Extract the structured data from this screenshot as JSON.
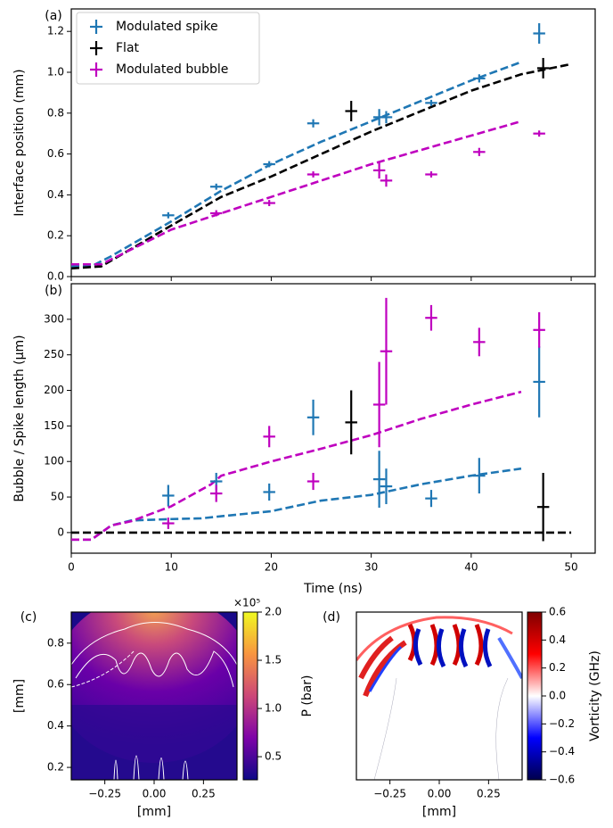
{
  "chart_data": [
    {
      "type": "errorbar",
      "label": "(a)",
      "ylabel": "Interface position (mm)",
      "xlim": [
        0,
        52.4
      ],
      "xticks": [
        0,
        10,
        20,
        30,
        40,
        50
      ],
      "ylim": [
        0,
        1.31
      ],
      "yticks": [
        {
          "value": 0,
          "label": "0.0"
        },
        0.2,
        0.4,
        0.6,
        0.8,
        {
          "value": 1,
          "label": "1.0"
        },
        1.2
      ],
      "legend": "upper left",
      "series": [
        {
          "name": "Modulated spike",
          "color": "#1f77b4",
          "x": [
            9.7,
            14.5,
            19.8,
            24.2,
            30.8,
            31.5,
            36,
            40.8,
            46.8
          ],
          "values": [
            0.3,
            0.44,
            0.55,
            0.75,
            0.78,
            0.78,
            0.85,
            0.97,
            1.19
          ],
          "yerr": [
            0.015,
            0.015,
            0.015,
            0.02,
            0.04,
            0.03,
            0.015,
            0.02,
            0.05
          ],
          "xerr": [
            0.6,
            0.6,
            0.6,
            0.6,
            0.6,
            0.6,
            0.6,
            0.6,
            0.6
          ]
        },
        {
          "name": "Flat",
          "color": "#000000",
          "x": [
            28,
            47.2
          ],
          "values": [
            0.81,
            1.02
          ],
          "yerr": [
            0.05,
            0.05
          ],
          "xerr": [
            0.6,
            0.6
          ]
        },
        {
          "name": "Modulated bubble",
          "color": "#bf00bf",
          "x": [
            14.5,
            19.8,
            24.2,
            30.8,
            31.5,
            36,
            40.8,
            46.8
          ],
          "values": [
            0.31,
            0.36,
            0.5,
            0.52,
            0.47,
            0.5,
            0.61,
            0.7
          ],
          "yerr": [
            0.015,
            0.015,
            0.015,
            0.04,
            0.03,
            0.015,
            0.02,
            0.015
          ],
          "xerr": [
            0.6,
            0.6,
            0.6,
            0.6,
            0.6,
            0.6,
            0.6,
            0.6
          ]
        }
      ],
      "lines": [
        {
          "color": "#1f77b4",
          "x": [
            0,
            2,
            4,
            10,
            15,
            20,
            25,
            30,
            35,
            40,
            45
          ],
          "values": [
            0.05,
            0.05,
            0.1,
            0.27,
            0.42,
            0.55,
            0.66,
            0.76,
            0.86,
            0.96,
            1.05
          ]
        },
        {
          "color": "#000000",
          "x": [
            0,
            3,
            10,
            15,
            20,
            25,
            30,
            35,
            40,
            45,
            50
          ],
          "values": [
            0.04,
            0.05,
            0.25,
            0.39,
            0.49,
            0.6,
            0.71,
            0.81,
            0.91,
            0.99,
            1.04
          ]
        },
        {
          "color": "#bf00bf",
          "x": [
            0,
            3,
            10,
            15,
            20,
            25,
            30,
            35,
            40,
            45
          ],
          "values": [
            0.06,
            0.06,
            0.23,
            0.31,
            0.39,
            0.47,
            0.55,
            0.62,
            0.69,
            0.76
          ]
        }
      ]
    },
    {
      "type": "errorbar",
      "label": "(b)",
      "ylabel": "Bubble / Spike length (μm)",
      "xlabel": "Time (ns)",
      "xlim": [
        0,
        52.4
      ],
      "xticks": [
        0,
        10,
        20,
        30,
        40,
        50
      ],
      "ylim": [
        -29,
        350
      ],
      "yticks": [
        0,
        50,
        100,
        150,
        200,
        250,
        300
      ],
      "series": [
        {
          "color": "#1f77b4",
          "x": [
            9.7,
            14.5,
            19.8,
            24.2,
            30.8,
            31.5,
            36,
            40.8,
            46.8
          ],
          "values": [
            52,
            72,
            57,
            162,
            75,
            65,
            48,
            80,
            212
          ],
          "yerr": [
            15,
            12,
            12,
            25,
            40,
            25,
            12,
            25,
            50
          ],
          "xerr": [
            0.6,
            0.6,
            0.6,
            0.6,
            0.6,
            0.6,
            0.6,
            0.6,
            0.6
          ]
        },
        {
          "color": "#000000",
          "x": [
            28,
            47.2
          ],
          "values": [
            155,
            36
          ],
          "yerr": [
            45,
            48
          ],
          "xerr": [
            0.6,
            0.6
          ]
        },
        {
          "color": "#bf00bf",
          "x": [
            9.7,
            14.5,
            19.8,
            24.2,
            30.8,
            31.5,
            36,
            40.8,
            46.8
          ],
          "values": [
            13,
            55,
            135,
            72,
            180,
            255,
            302,
            268,
            285
          ],
          "yerr": [
            8,
            12,
            15,
            12,
            60,
            75,
            18,
            20,
            25
          ],
          "xerr": [
            0.6,
            0.6,
            0.6,
            0.6,
            0.6,
            0.6,
            0.6,
            0.6,
            0.6
          ]
        }
      ],
      "lines": [
        {
          "color": "#1f77b4",
          "x": [
            0,
            2,
            4,
            6,
            10,
            13,
            15,
            20,
            25,
            30,
            35,
            40,
            45
          ],
          "values": [
            -10,
            -10,
            10,
            17,
            19,
            20,
            23,
            30,
            45,
            53,
            68,
            80,
            90
          ]
        },
        {
          "color": "#bf00bf",
          "x": [
            0,
            2,
            4,
            6,
            10,
            14,
            15,
            20,
            25,
            30,
            35,
            40,
            45
          ],
          "values": [
            -10,
            -10,
            10,
            16,
            37,
            68,
            80,
            100,
            118,
            137,
            160,
            180,
            198
          ]
        },
        {
          "color": "#000000",
          "x": [
            0,
            50
          ],
          "values": [
            0,
            0
          ]
        }
      ]
    },
    {
      "type": "image",
      "label": "(c)",
      "xlabel": "[mm]",
      "ylabel": "[mm]",
      "xlim": [
        -0.42,
        0.42
      ],
      "xticks": [
        {
          "value": -0.25,
          "label": "−0.25"
        },
        {
          "value": 0,
          "label": "0.00"
        },
        0.25
      ],
      "ylim": [
        0.14,
        0.95
      ],
      "yticks": [
        0.2,
        0.4,
        0.6,
        0.8
      ],
      "colorbar": {
        "label": "P (bar)",
        "offset": "×10⁵",
        "lim": [
          0.26,
          2.0
        ],
        "ticks": [
          0.5,
          {
            "value": 1,
            "label": "1.0"
          },
          1.5,
          {
            "value": 2,
            "label": "2.0"
          }
        ],
        "colors": [
          "#0d0887",
          "#7e03a8",
          "#cc4778",
          "#f89540",
          "#f0f921"
        ]
      }
    },
    {
      "type": "image",
      "label": "(d)",
      "xlabel": "[mm]",
      "xlim": [
        -0.42,
        0.42
      ],
      "xticks": [
        {
          "value": -0.25,
          "label": "−0.25"
        },
        {
          "value": 0,
          "label": "0.00"
        },
        0.25
      ],
      "colorbar": {
        "label": "Vorticity (GHz)",
        "lim": [
          -0.6,
          0.6
        ],
        "ticks": [
          {
            "value": -0.6,
            "label": "−0.6"
          },
          {
            "value": -0.4,
            "label": "−0.4"
          },
          {
            "value": -0.2,
            "label": "−0.2"
          },
          {
            "value": 0,
            "label": "0.0"
          },
          0.2,
          0.4,
          0.6
        ],
        "colors": [
          "#00004c",
          "#0000ff",
          "#ffffff",
          "#ff0000",
          "#7f0000"
        ]
      }
    }
  ]
}
